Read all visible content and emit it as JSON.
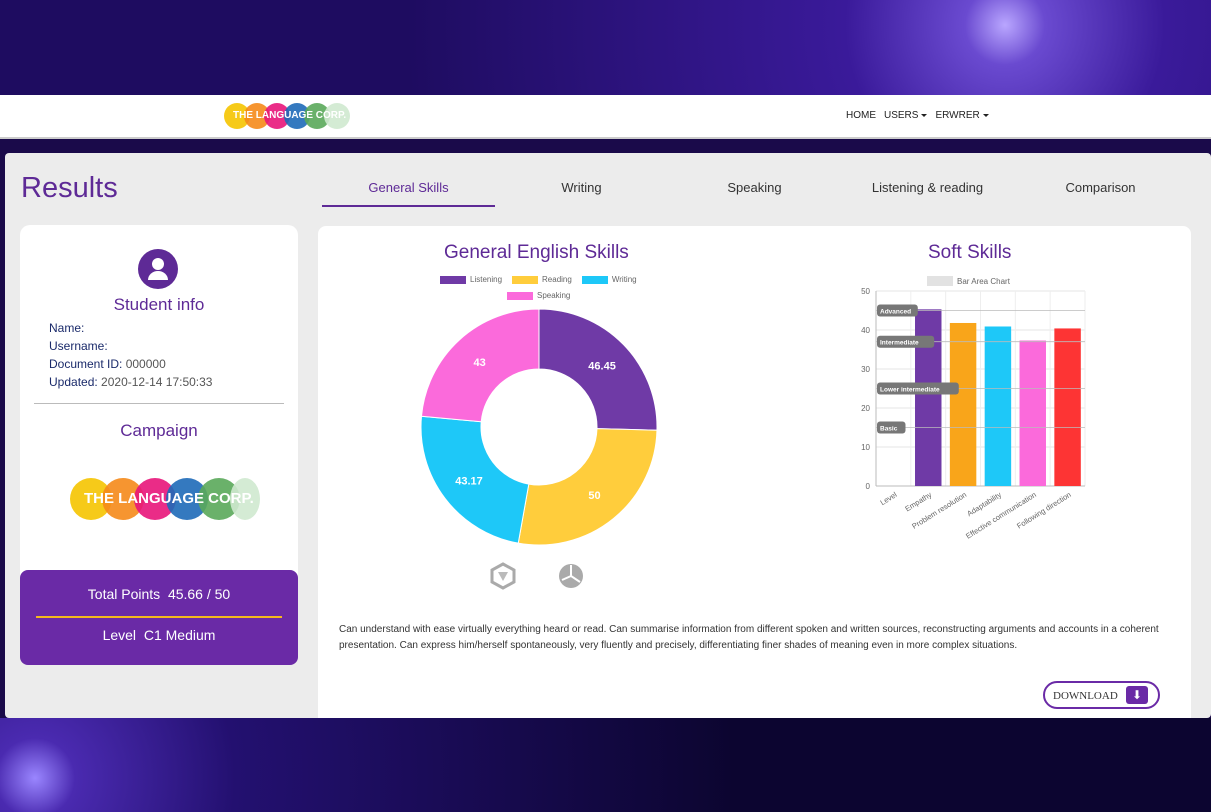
{
  "nav": {
    "logo_text": "THE LANGUAGE CORP.",
    "links": [
      {
        "label": "HOME"
      },
      {
        "label": "USERS"
      },
      {
        "label": "ERWRER"
      }
    ]
  },
  "page_title": "Results",
  "tabs": [
    {
      "label": "General Skills",
      "active": true
    },
    {
      "label": "Writing"
    },
    {
      "label": "Speaking"
    },
    {
      "label": "Listening & reading"
    },
    {
      "label": "Comparison"
    }
  ],
  "student": {
    "title": "Student info",
    "name_label": "Name:",
    "name": "",
    "username_label": "Username:",
    "username": "",
    "docid_label": "Document ID:",
    "docid": "000000",
    "updated_label": "Updated:",
    "updated": "2020-12-14 17:50:33",
    "campaign_title": "Campaign",
    "campaign_logo_text": "THE LANGUAGE CORP."
  },
  "totals": {
    "points_label": "Total Points",
    "points": "45.66 / 50",
    "level_label": "Level",
    "level": "C1 Medium"
  },
  "chart_data": [
    {
      "type": "pie",
      "title": "General English Skills",
      "donut": true,
      "categories": [
        "Listening",
        "Reading",
        "Writing",
        "Speaking"
      ],
      "values": [
        46.45,
        50,
        43.17,
        43
      ],
      "colors": [
        "#6f3aa6",
        "#ffcd3c",
        "#1ec8f8",
        "#fb6adb"
      ],
      "legend": "top"
    },
    {
      "type": "bar",
      "title": "Soft Skills",
      "legend_label": "Bar Area Chart",
      "legend": "top",
      "categories": [
        "Level",
        "Empathy",
        "Problem resolution",
        "Adaptability",
        "Effective communication",
        "Following direction"
      ],
      "values": [
        null,
        45.3,
        41.8,
        40.9,
        37.3,
        40.4
      ],
      "colors": [
        "#6f3aa6",
        "#f9a51a",
        "#1ec8f8",
        "#fb6adb",
        "#fd3434"
      ],
      "ylim": [
        0,
        50
      ],
      "yticks": [
        0,
        10,
        20,
        30,
        40,
        50
      ],
      "grid": true,
      "level_bands": [
        {
          "label": "Advanced",
          "value": 45
        },
        {
          "label": "Intermediate",
          "value": 37
        },
        {
          "label": "Lower intermediate",
          "value": 25
        },
        {
          "label": "Basic",
          "value": 15
        }
      ]
    }
  ],
  "description": "Can understand with ease virtually everything heard or read. Can summarise information from different spoken and written sources, reconstructing arguments and accounts in a coherent presentation. Can express him/herself spontaneously, very fluently and precisely, differentiating finer shades of meaning even in more complex situations.",
  "download_label": "DOWNLOAD",
  "icons": [
    "download-icon",
    "user-icon",
    "view-3d-icon",
    "globe-icon"
  ]
}
